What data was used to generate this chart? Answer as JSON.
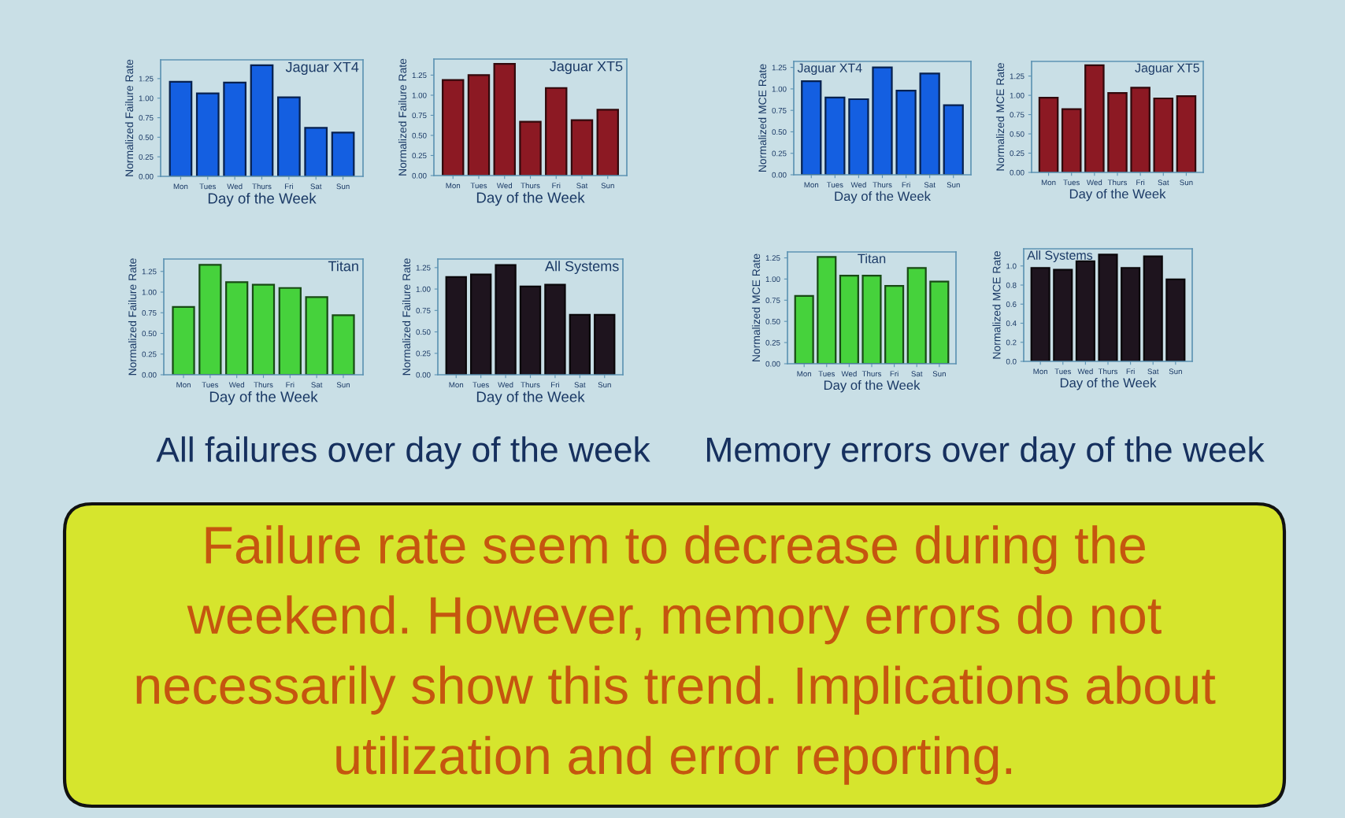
{
  "chart_data": [
    {
      "type": "bar",
      "title": "Jaguar XT4",
      "xlabel": "Day of the Week",
      "ylabel": "Normalized Failure Rate",
      "categories": [
        "Mon",
        "Tues",
        "Wed",
        "Thurs",
        "Fri",
        "Sat",
        "Sun"
      ],
      "values": [
        1.21,
        1.06,
        1.2,
        1.42,
        1.01,
        0.62,
        0.56
      ],
      "color": "#145fe1",
      "ylim": [
        0,
        1.49
      ],
      "yticks": [
        {
          "value": 0,
          "label": "0.00"
        },
        {
          "value": 0.25,
          "label": "0.25"
        },
        {
          "value": 0.5,
          "label": "0.50"
        },
        {
          "value": 0.75,
          "label": "0.75"
        },
        {
          "value": 1,
          "label": "1.00"
        },
        {
          "value": 1.25,
          "label": "1.25"
        }
      ]
    },
    {
      "type": "bar",
      "title": "Jaguar XT5",
      "xlabel": "Day of the Week",
      "ylabel": "Normalized Failure Rate",
      "categories": [
        "Mon",
        "Tues",
        "Wed",
        "Thurs",
        "Fri",
        "Sat",
        "Sun"
      ],
      "values": [
        1.19,
        1.25,
        1.39,
        0.67,
        1.09,
        0.69,
        0.82
      ],
      "color": "#8c1923",
      "ylim": [
        0,
        1.45
      ],
      "yticks": [
        {
          "value": 0,
          "label": "0.00"
        },
        {
          "value": 0.25,
          "label": "0.25"
        },
        {
          "value": 0.5,
          "label": "0.50"
        },
        {
          "value": 0.75,
          "label": "0.75"
        },
        {
          "value": 1,
          "label": "1.00"
        },
        {
          "value": 1.25,
          "label": "1.25"
        }
      ]
    },
    {
      "type": "bar",
      "title": "Titan",
      "xlabel": "Day of the Week",
      "ylabel": "Normalized Failure Rate",
      "categories": [
        "Mon",
        "Tues",
        "Wed",
        "Thurs",
        "Fri",
        "Sat",
        "Sun"
      ],
      "values": [
        0.82,
        1.33,
        1.12,
        1.09,
        1.05,
        0.94,
        0.72
      ],
      "color": "#46d23c",
      "ylim": [
        0,
        1.4
      ],
      "yticks": [
        {
          "value": 0,
          "label": "0.00"
        },
        {
          "value": 0.25,
          "label": "0.25"
        },
        {
          "value": 0.5,
          "label": "0.50"
        },
        {
          "value": 0.75,
          "label": "0.75"
        },
        {
          "value": 1,
          "label": "1.00"
        },
        {
          "value": 1.25,
          "label": "1.25"
        }
      ],
      "annotations": [
        "All failures over day of the week"
      ]
    },
    {
      "type": "bar",
      "title": "All Systems",
      "xlabel": "Day of the Week",
      "ylabel": "Normalized Failure Rate",
      "categories": [
        "Mon",
        "Tues",
        "Wed",
        "Thurs",
        "Fri",
        "Sat",
        "Sun"
      ],
      "values": [
        1.14,
        1.17,
        1.28,
        1.03,
        1.05,
        0.7,
        0.7
      ],
      "color": "#1e141e",
      "ylim": [
        0,
        1.35
      ],
      "yticks": [
        {
          "value": 0,
          "label": "0.00"
        },
        {
          "value": 0.25,
          "label": "0.25"
        },
        {
          "value": 0.5,
          "label": "0.50"
        },
        {
          "value": 0.75,
          "label": "0.75"
        },
        {
          "value": 1,
          "label": "1.00"
        },
        {
          "value": 1.25,
          "label": "1.25"
        }
      ]
    },
    {
      "type": "bar",
      "title": "Jaguar XT4",
      "xlabel": "Day of the Week",
      "ylabel": "Normalized MCE Rate",
      "categories": [
        "Mon",
        "Tues",
        "Wed",
        "Thurs",
        "Fri",
        "Sat",
        "Sun"
      ],
      "values": [
        1.09,
        0.9,
        0.88,
        1.25,
        0.98,
        1.18,
        0.81
      ],
      "color": "#145fe1",
      "ylim": [
        0,
        1.32
      ],
      "yticks": [
        {
          "value": 0,
          "label": "0.00"
        },
        {
          "value": 0.25,
          "label": "0.25"
        },
        {
          "value": 0.5,
          "label": "0.50"
        },
        {
          "value": 0.75,
          "label": "0.75"
        },
        {
          "value": 1,
          "label": "1.00"
        },
        {
          "value": 1.25,
          "label": "1.25"
        }
      ]
    },
    {
      "type": "bar",
      "title": "Jaguar XT5",
      "xlabel": "Day of the Week",
      "ylabel": "Normalized MCE Rate",
      "categories": [
        "Mon",
        "Tues",
        "Wed",
        "Thurs",
        "Fri",
        "Sat",
        "Sun"
      ],
      "values": [
        0.97,
        0.82,
        1.39,
        1.03,
        1.1,
        0.96,
        0.99
      ],
      "color": "#8c1923",
      "ylim": [
        0,
        1.44
      ],
      "yticks": [
        {
          "value": 0,
          "label": "0.00"
        },
        {
          "value": 0.25,
          "label": "0.25"
        },
        {
          "value": 0.5,
          "label": "0.50"
        },
        {
          "value": 0.75,
          "label": "0.75"
        },
        {
          "value": 1,
          "label": "1.00"
        },
        {
          "value": 1.25,
          "label": "1.25"
        }
      ]
    },
    {
      "type": "bar",
      "title": "Titan",
      "xlabel": "Day of the Week",
      "ylabel": "Normalized MCE Rate",
      "categories": [
        "Mon",
        "Tues",
        "Wed",
        "Thurs",
        "Fri",
        "Sat",
        "Sun"
      ],
      "values": [
        0.8,
        1.26,
        1.04,
        1.04,
        0.92,
        1.13,
        0.97
      ],
      "color": "#46d23c",
      "ylim": [
        0,
        1.32
      ],
      "yticks": [
        {
          "value": 0,
          "label": "0.00"
        },
        {
          "value": 0.25,
          "label": "0.25"
        },
        {
          "value": 0.5,
          "label": "0.50"
        },
        {
          "value": 0.75,
          "label": "0.75"
        },
        {
          "value": 1,
          "label": "1.00"
        },
        {
          "value": 1.25,
          "label": "1.25"
        }
      ],
      "annotations": [
        "Memory errors over day of the week"
      ]
    },
    {
      "type": "bar",
      "title": "All Systems",
      "xlabel": "Day of the Week",
      "ylabel": "Normalized MCE Rate",
      "categories": [
        "Mon",
        "Tues",
        "Wed",
        "Thurs",
        "Fri",
        "Sat",
        "Sun"
      ],
      "values": [
        0.98,
        0.96,
        1.05,
        1.12,
        0.98,
        1.1,
        0.86
      ],
      "color": "#1e141e",
      "ylim": [
        0,
        1.18
      ],
      "yticks": [
        {
          "value": 0,
          "label": "0.0"
        },
        {
          "value": 0.2,
          "label": "0.2"
        },
        {
          "value": 0.4,
          "label": "0.4"
        },
        {
          "value": 0.6,
          "label": "0.6"
        },
        {
          "value": 0.8,
          "label": "0.8"
        },
        {
          "value": 1,
          "label": "1.0"
        }
      ]
    },
    {
      "type": "other",
      "color": "#d6e52d",
      "annotations": [
        "Failure rate seem to decrease during the weekend. However, memory errors do not necessarily show this trend. Implications about utilization and error reporting."
      ]
    }
  ]
}
